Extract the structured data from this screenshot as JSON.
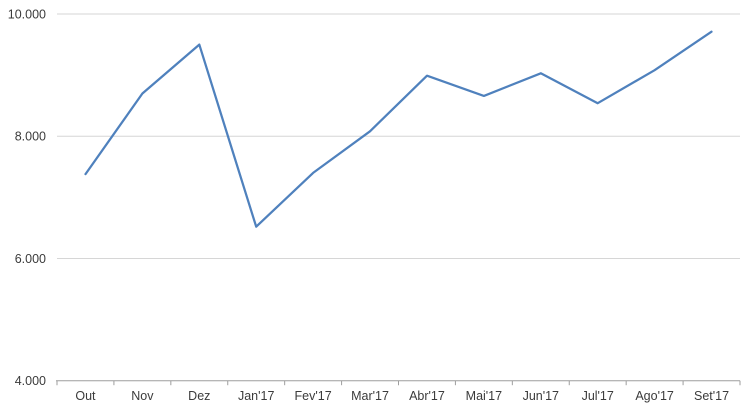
{
  "chart_data": {
    "type": "line",
    "title": "",
    "xlabel": "",
    "ylabel": "",
    "categories": [
      "Out",
      "Nov",
      "Dez",
      "Jan'17",
      "Fev'17",
      "Mar'17",
      "Abr'17",
      "Mai'17",
      "Jun'17",
      "Jul'17",
      "Ago'17",
      "Set'17"
    ],
    "values": [
      7380,
      8700,
      9500,
      6520,
      7400,
      8080,
      8990,
      8660,
      9030,
      8540,
      9080,
      9710
    ],
    "ylim": [
      4000,
      10000
    ],
    "y_ticks": [
      {
        "value": 4000,
        "label": "4.000"
      },
      {
        "value": 6000,
        "label": "6.000"
      },
      {
        "value": 8000,
        "label": "8.000"
      },
      {
        "value": 10000,
        "label": "10.000"
      }
    ],
    "grid": "horizontal",
    "legend": "none",
    "colors": {
      "line": "#4F81BD",
      "gridline": "#D6D6D6",
      "axis": "#9E9E9E",
      "tick_label": "#3B3B3B",
      "background": "#FFFFFF"
    }
  }
}
